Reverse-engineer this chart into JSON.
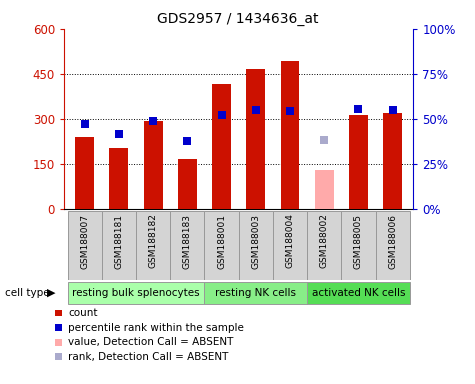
{
  "title": "GDS2957 / 1434636_at",
  "samples": [
    "GSM188007",
    "GSM188181",
    "GSM188182",
    "GSM188183",
    "GSM188001",
    "GSM188003",
    "GSM188004",
    "GSM188002",
    "GSM188005",
    "GSM188006"
  ],
  "count_values": [
    240,
    205,
    295,
    168,
    415,
    468,
    492,
    130,
    315,
    320
  ],
  "rank_values": [
    285,
    250,
    295,
    228,
    315,
    330,
    326,
    230,
    335,
    330
  ],
  "absent_mask": [
    false,
    false,
    false,
    false,
    false,
    false,
    false,
    true,
    false,
    false
  ],
  "bar_color_present": "#cc1100",
  "bar_color_absent": "#ffaaaa",
  "rank_color_present": "#0000cc",
  "rank_color_absent": "#aaaacc",
  "ylim_left": [
    0,
    600
  ],
  "ylim_right": [
    0,
    100
  ],
  "yticks_left": [
    0,
    150,
    300,
    450,
    600
  ],
  "yticks_right": [
    0,
    25,
    50,
    75,
    100
  ],
  "yticklabels_left": [
    "0",
    "150",
    "300",
    "450",
    "600"
  ],
  "yticklabels_right": [
    "0%",
    "25%",
    "50%",
    "75%",
    "100%"
  ],
  "cell_types": [
    {
      "label": "resting bulk splenocytes",
      "start": 0,
      "end": 3,
      "color": "#aaffaa"
    },
    {
      "label": "resting NK cells",
      "start": 4,
      "end": 6,
      "color": "#88ee88"
    },
    {
      "label": "activated NK cells",
      "start": 7,
      "end": 9,
      "color": "#55dd55"
    }
  ],
  "legend_items": [
    {
      "label": "count",
      "color": "#cc1100"
    },
    {
      "label": "percentile rank within the sample",
      "color": "#0000cc"
    },
    {
      "label": "value, Detection Call = ABSENT",
      "color": "#ffaaaa"
    },
    {
      "label": "rank, Detection Call = ABSENT",
      "color": "#aaaacc"
    }
  ],
  "cell_type_label": "cell type",
  "sample_box_color": "#cccccc",
  "background_color": "#ffffff",
  "bar_width": 0.55
}
